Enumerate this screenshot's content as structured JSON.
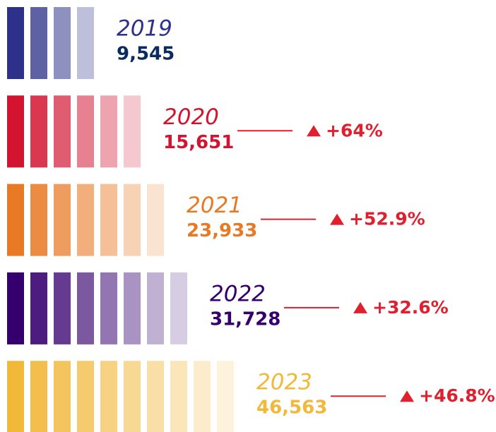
{
  "chart_data": {
    "type": "pictogram",
    "categories": [
      "2019",
      "2020",
      "2021",
      "2022",
      "2023"
    ],
    "values": [
      9545,
      15651,
      23933,
      31728,
      46563
    ],
    "value_labels": [
      "9,545",
      "15,651",
      "23,933",
      "31,728",
      "46,563"
    ],
    "stripes": [
      4,
      6,
      7,
      8,
      10
    ],
    "colors": [
      "#2e3189",
      "#d31431",
      "#e97a25",
      "#35006e",
      "#f2b83a"
    ],
    "changes": [
      null,
      64,
      52.9,
      32.6,
      46.8
    ],
    "change_labels": [
      null,
      "+64%",
      "+52.9%",
      "+32.6%",
      "+46.8%"
    ]
  }
}
